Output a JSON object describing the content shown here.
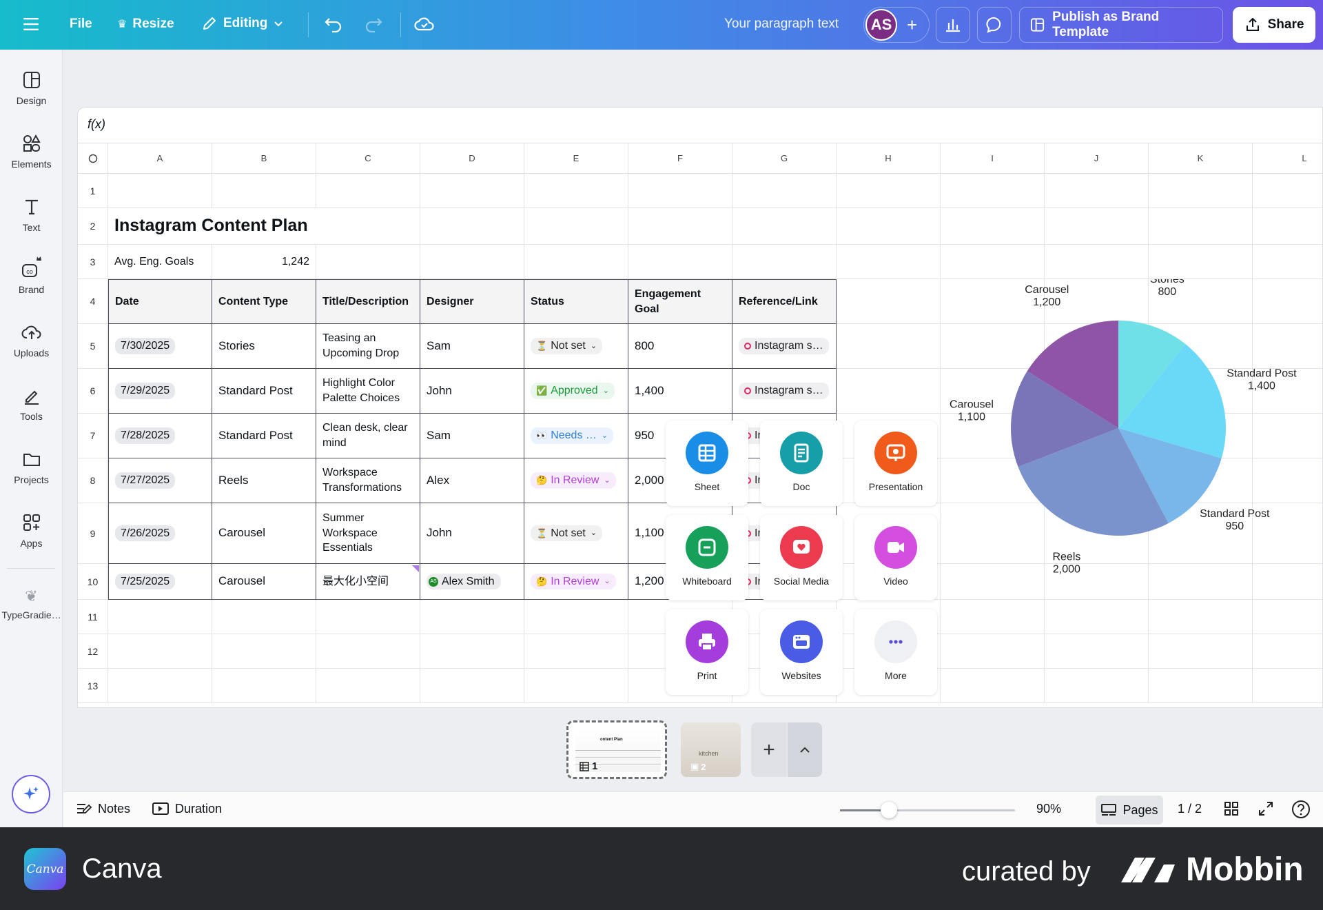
{
  "topbar": {
    "file": "File",
    "resize": "Resize",
    "mode": "Editing",
    "paragraph": "Your paragraph text",
    "avatar": "AS",
    "publish": "Publish as Brand Template",
    "share": "Share"
  },
  "sidebar": {
    "items": [
      {
        "label": "Design",
        "icon": "design-icon"
      },
      {
        "label": "Elements",
        "icon": "elements-icon"
      },
      {
        "label": "Text",
        "icon": "text-icon"
      },
      {
        "label": "Brand",
        "icon": "brand-icon"
      },
      {
        "label": "Uploads",
        "icon": "uploads-icon"
      },
      {
        "label": "Tools",
        "icon": "tools-icon"
      },
      {
        "label": "Projects",
        "icon": "projects-icon"
      },
      {
        "label": "Apps",
        "icon": "apps-icon"
      },
      {
        "label": "TypeGradie…",
        "icon": "typegradient-icon"
      }
    ]
  },
  "sheet": {
    "formula": "f(x)",
    "columns": [
      "A",
      "B",
      "C",
      "D",
      "E",
      "F",
      "G",
      "H",
      "I",
      "J",
      "K",
      "L"
    ],
    "rows": [
      "1",
      "2",
      "3",
      "4",
      "5",
      "6",
      "7",
      "8",
      "9",
      "10",
      "11",
      "12",
      "13"
    ],
    "title": "Instagram Content Plan",
    "goal_label": "Avg. Eng. Goals",
    "goal_value": "1,242",
    "headers": [
      "Date",
      "Content Type",
      "Title/Description",
      "Designer",
      "Status",
      "Engagement Goal",
      "Reference/Link"
    ],
    "records": [
      {
        "date": "7/30/2025",
        "type": "Stories",
        "title": "Teasing an Upcoming Drop",
        "designer": "Sam",
        "status": "Not set",
        "status_emoji": "⏳",
        "goal": "800",
        "link": "Instagram s…"
      },
      {
        "date": "7/29/2025",
        "type": "Standard Post",
        "title": "Highlight Color Palette Choices",
        "designer": "John",
        "status": "Approved",
        "status_emoji": "✅",
        "goal": "1,400",
        "link": "Instagram s…"
      },
      {
        "date": "7/28/2025",
        "type": "Standard Post",
        "title": "Clean desk, clear mind",
        "designer": "Sam",
        "status": "Needs …",
        "status_emoji": "👀",
        "goal": "950",
        "link": "In"
      },
      {
        "date": "7/27/2025",
        "type": "Reels",
        "title": "Workspace Transformations",
        "designer": "Alex",
        "status": "In Review",
        "status_emoji": "🤔",
        "goal": "2,000",
        "link": "In"
      },
      {
        "date": "7/26/2025",
        "type": "Carousel",
        "title": "Summer Workspace Essentials",
        "designer": "John",
        "status": "Not set",
        "status_emoji": "⏳",
        "goal": "1,100",
        "link": "In"
      },
      {
        "date": "7/25/2025",
        "type": "Carousel",
        "title": "最大化小空间",
        "designer": "Alex Smith",
        "designer_badge": "AS",
        "status": "In Review",
        "status_emoji": "🤔",
        "goal": "1,200",
        "link": "In"
      }
    ]
  },
  "create_menu": {
    "items": [
      {
        "label": "Sheet",
        "color": "#1a8ee6",
        "icon": "sheet-icon"
      },
      {
        "label": "Doc",
        "color": "#169fa8",
        "icon": "doc-icon"
      },
      {
        "label": "Presentation",
        "color": "#f05a1a",
        "icon": "presentation-icon"
      },
      {
        "label": "Whiteboard",
        "color": "#16a05a",
        "icon": "whiteboard-icon"
      },
      {
        "label": "Social Media",
        "color": "#ec3a4f",
        "icon": "social-media-icon"
      },
      {
        "label": "Video",
        "color": "#d44fe0",
        "icon": "video-icon"
      },
      {
        "label": "Print",
        "color": "#a43ddc",
        "icon": "print-icon"
      },
      {
        "label": "Websites",
        "color": "#4a5ce6",
        "icon": "websites-icon"
      },
      {
        "label": "More",
        "color": "#eef0f3",
        "icon": "more-icon"
      }
    ]
  },
  "chart_data": {
    "type": "pie",
    "slices": [
      {
        "label": "Stories",
        "value": 800,
        "color": "#6fe0e6"
      },
      {
        "label": "Standard Post",
        "value": 1400,
        "color": "#6ad9f7"
      },
      {
        "label": "Standard Post",
        "value": 950,
        "color": "#79b6ea"
      },
      {
        "label": "Reels",
        "value": 2000,
        "color": "#7b93cc"
      },
      {
        "label": "Carousel",
        "value": 1100,
        "color": "#7a74b8"
      },
      {
        "label": "Carousel",
        "value": 1200,
        "color": "#8e55a6"
      }
    ]
  },
  "pages": {
    "thumb1_num": "1",
    "thumb2_num": "2",
    "thumb1_caption": "ontent Plan",
    "thumb2_caption": "kitchen"
  },
  "bottombar": {
    "notes": "Notes",
    "duration": "Duration",
    "zoom": "90%",
    "zoom_level": 0.28,
    "pages": "Pages",
    "page_count": "1 / 2"
  },
  "footer": {
    "app_name": "Canva",
    "logo_text": "Canva",
    "curated": "curated by",
    "brand": "Mobbin"
  }
}
